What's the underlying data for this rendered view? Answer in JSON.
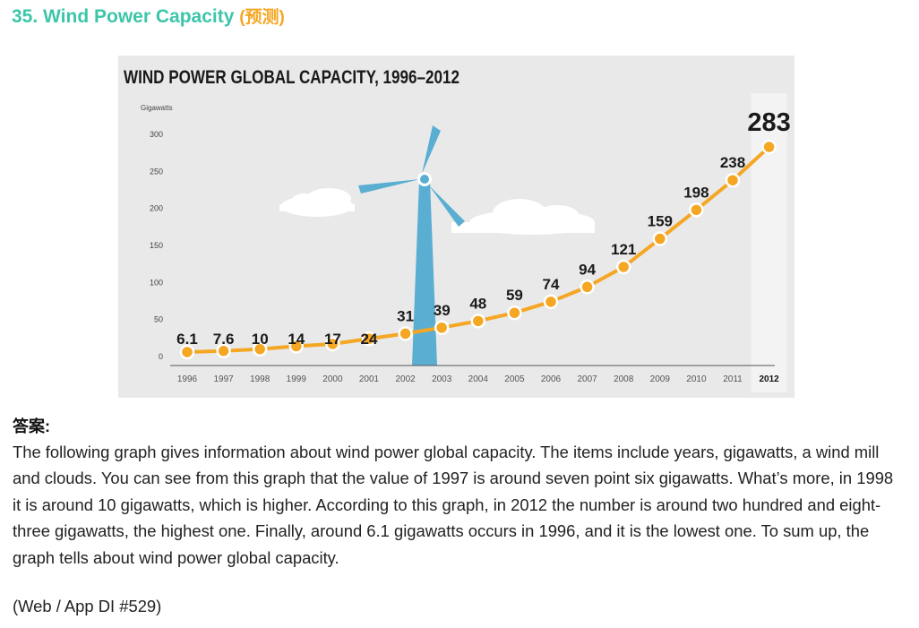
{
  "heading": {
    "number": "35. Wind Power Capacity",
    "tag": "(预测)"
  },
  "colors": {
    "heading": "#3cc6a9",
    "tag": "#f5a623",
    "line": "#f5a623",
    "turbine": "#5aaed2"
  },
  "illustration": {
    "icons": [
      "wind-turbine-icon",
      "cloud-icon",
      "cloud-icon"
    ]
  },
  "chart_data": {
    "type": "line",
    "title": "WIND POWER GLOBAL CAPACITY, 1996–2012",
    "ylabel": "Gigawatts",
    "xlabel": "",
    "ylim": [
      0,
      300
    ],
    "yticks": [
      0,
      50,
      100,
      150,
      200,
      250,
      300
    ],
    "grid": false,
    "highlight": "2012",
    "categories": [
      "1996",
      "1997",
      "1998",
      "1999",
      "2000",
      "2001",
      "2002",
      "2003",
      "2004",
      "2005",
      "2006",
      "2007",
      "2008",
      "2009",
      "2010",
      "2011",
      "2012"
    ],
    "values": [
      6.1,
      7.6,
      10,
      14,
      17,
      24,
      31,
      39,
      48,
      59,
      74,
      94,
      121,
      159,
      198,
      238,
      283
    ],
    "value_labels": [
      "6.1",
      "7.6",
      "10",
      "14",
      "17",
      "24",
      "31",
      "39",
      "48",
      "59",
      "74",
      "94",
      "121",
      "159",
      "198",
      "238",
      "283"
    ]
  },
  "answer": {
    "label": "答案:",
    "text": "The following graph gives information about wind power global capacity. The items include years, gigawatts, a wind mill and clouds. You can see from this graph that the value of 1997 is around seven point six gigawatts. What’s more, in 1998 it is around 10 gigawatts, which is higher. According to this graph, in 2012 the number is around two hundred and eight-three gigawatts, the highest one. Finally, around 6.1 gigawatts occurs in 1996, and it is the lowest one. To sum up, the graph tells about wind power global capacity.",
    "source": "(Web / App DI #529)"
  }
}
